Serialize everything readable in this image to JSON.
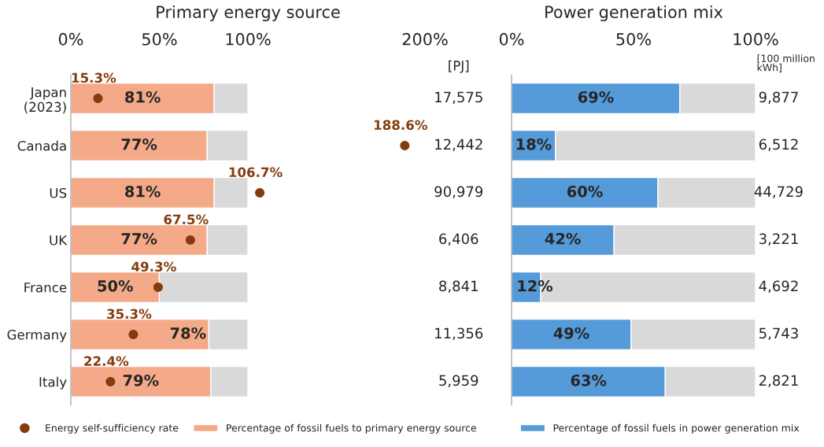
{
  "chart_data": [
    {
      "type": "bar",
      "orientation": "horizontal",
      "stacked": true,
      "title": "Primary energy source",
      "categories": [
        "Japan\n(2023)",
        "Canada",
        "US",
        "UK",
        "France",
        "Germany",
        "Italy"
      ],
      "series": [
        {
          "name": "Percentage of fossil fuels to primary energy source",
          "color": "#f4aa88",
          "values": [
            81,
            77,
            81,
            77,
            50,
            78,
            79
          ],
          "value_labels": [
            "81%",
            "77%",
            "81%",
            "77%",
            "50%",
            "78%",
            "79%"
          ]
        },
        {
          "color": "#d9d9d9",
          "values": [
            19,
            23,
            19,
            23,
            50,
            22,
            21
          ]
        },
        {
          "type": "scatter",
          "name": "Energy self-sufficiency rate",
          "color": "#843c0c",
          "marker": "circle",
          "values": [
            15.3,
            188.6,
            106.7,
            67.5,
            49.3,
            35.3,
            22.4
          ],
          "value_labels": [
            "15.3%",
            "188.6%",
            "106.7%",
            "67.5%",
            "49.3%",
            "35.3%",
            "22.4%"
          ]
        }
      ],
      "xlim": [
        0,
        200
      ],
      "xticks": [
        {
          "value": 0,
          "label": "0%"
        },
        {
          "value": 50,
          "label": "50%"
        },
        {
          "value": 100,
          "label": "100%"
        },
        {
          "value": 200,
          "label": "200%"
        }
      ],
      "annotations": [
        "[PJ]",
        "17,575",
        "12,442",
        "90,979",
        "6,406",
        "8,841",
        "11,356",
        "5,959"
      ],
      "legend": "bottom",
      "grid": false
    },
    {
      "type": "bar",
      "orientation": "horizontal",
      "stacked": true,
      "title": "Power generation mix",
      "categories": [
        null,
        null,
        null,
        null,
        null,
        null,
        null
      ],
      "series": [
        {
          "name": "Percentage of fossil fuels in power generation mix",
          "color": "#559ad9",
          "values": [
            69,
            18,
            60,
            42,
            12,
            49,
            63
          ],
          "value_labels": [
            "69%",
            "18%",
            "60%",
            "42%",
            "12%",
            "49%",
            "63%"
          ]
        },
        {
          "color": "#d9d9d9",
          "values": [
            31,
            82,
            40,
            58,
            88,
            51,
            37
          ]
        }
      ],
      "xlim": [
        0,
        100
      ],
      "xticks": [
        {
          "value": 0,
          "label": "0%"
        },
        {
          "value": 50,
          "label": "50%"
        },
        {
          "value": 100,
          "label": "100%"
        }
      ],
      "annotations": [
        "[100 million\nkWh]",
        "9,877",
        "6,512",
        "44,729",
        "3,221",
        "4,692",
        "5,743",
        "2,821"
      ],
      "tick_labels": "x",
      "legend": "bottom",
      "grid": false
    }
  ]
}
